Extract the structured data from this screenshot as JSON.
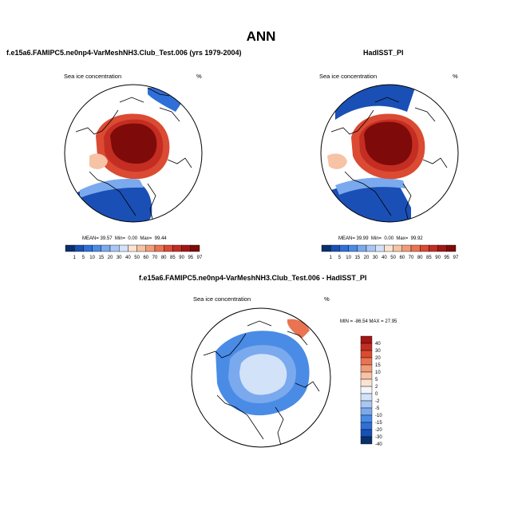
{
  "page": {
    "title": "ANN"
  },
  "colors": {
    "ice_scale": [
      "#08306b",
      "#1a4fb5",
      "#2f6fd8",
      "#4a8be6",
      "#7aa9ee",
      "#a8c6f4",
      "#d2e2f8",
      "#fbe3d3",
      "#f6c3a5",
      "#f19c78",
      "#ea7352",
      "#db4a32",
      "#c42d22",
      "#a31616",
      "#7f0a0a"
    ],
    "diff_scale": [
      "#08306b",
      "#1a4fb5",
      "#2f6fd8",
      "#4a8be6",
      "#7aa9ee",
      "#a8c6f4",
      "#d2e2f8",
      "#f2f5fb",
      "#fbe3d3",
      "#f6c3a5",
      "#f19c78",
      "#ea7352",
      "#db4a32",
      "#c42d22",
      "#a31616"
    ],
    "land": "#ffffff",
    "coast": "#000000"
  },
  "panels": [
    {
      "title": "f.e15a6.FAMIPC5.ne0np4-VarMeshNH3.Club_Test.006 (yrs 1979-2004)",
      "var_label": "Sea ice concentration",
      "units": "%",
      "stats": {
        "mean_label": "MEAN=",
        "mean": "39.57",
        "min_label": "Min=",
        "min": "0.00",
        "max_label": "Max=",
        "max": "99.44"
      },
      "colorbar_labels": [
        "1",
        "5",
        "10",
        "15",
        "20",
        "30",
        "40",
        "50",
        "60",
        "70",
        "80",
        "85",
        "90",
        "95",
        "97"
      ]
    },
    {
      "title": "HadISST_PI",
      "var_label": "Sea ice concentration",
      "units": "%",
      "stats": {
        "mean_label": "MEAN=",
        "mean": "39.99",
        "min_label": "Min=",
        "min": "0.00",
        "max_label": "Max=",
        "max": "99.92"
      },
      "colorbar_labels": [
        "1",
        "5",
        "10",
        "15",
        "20",
        "30",
        "40",
        "50",
        "60",
        "70",
        "80",
        "85",
        "90",
        "95",
        "97"
      ]
    },
    {
      "title": "f.e15a6.FAMIPC5.ne0np4-VarMeshNH3.Club_Test.006 - HadISST_PI",
      "var_label": "Sea ice concentration",
      "units": "%",
      "stats_text": "MIN = -86.54 MAX =  27.95",
      "colorbar_labels": [
        "40",
        "30",
        "20",
        "15",
        "10",
        "5",
        "2",
        "0",
        "-2",
        "-5",
        "-10",
        "-15",
        "-20",
        "-30",
        "-40"
      ]
    }
  ],
  "chart_data": [
    {
      "type": "heatmap",
      "projection": "north-polar-stereographic",
      "title": "f.e15a6.FAMIPC5.ne0np4-VarMeshNH3.Club_Test.006 (yrs 1979-2004)",
      "variable": "Sea ice concentration",
      "units": "%",
      "levels": [
        1,
        5,
        10,
        15,
        20,
        30,
        40,
        50,
        60,
        70,
        80,
        85,
        90,
        95,
        97
      ],
      "mean": 39.57,
      "min": 0.0,
      "max": 99.44
    },
    {
      "type": "heatmap",
      "projection": "north-polar-stereographic",
      "title": "HadISST_PI",
      "variable": "Sea ice concentration",
      "units": "%",
      "levels": [
        1,
        5,
        10,
        15,
        20,
        30,
        40,
        50,
        60,
        70,
        80,
        85,
        90,
        95,
        97
      ],
      "mean": 39.99,
      "min": 0.0,
      "max": 99.92
    },
    {
      "type": "heatmap",
      "projection": "north-polar-stereographic",
      "title": "f.e15a6.FAMIPC5.ne0np4-VarMeshNH3.Club_Test.006 - HadISST_PI",
      "variable": "Sea ice concentration",
      "units": "%",
      "levels": [
        -40,
        -30,
        -20,
        -15,
        -10,
        -5,
        -2,
        0,
        2,
        5,
        10,
        15,
        20,
        30,
        40
      ],
      "min": -86.54,
      "max": 27.95
    }
  ]
}
